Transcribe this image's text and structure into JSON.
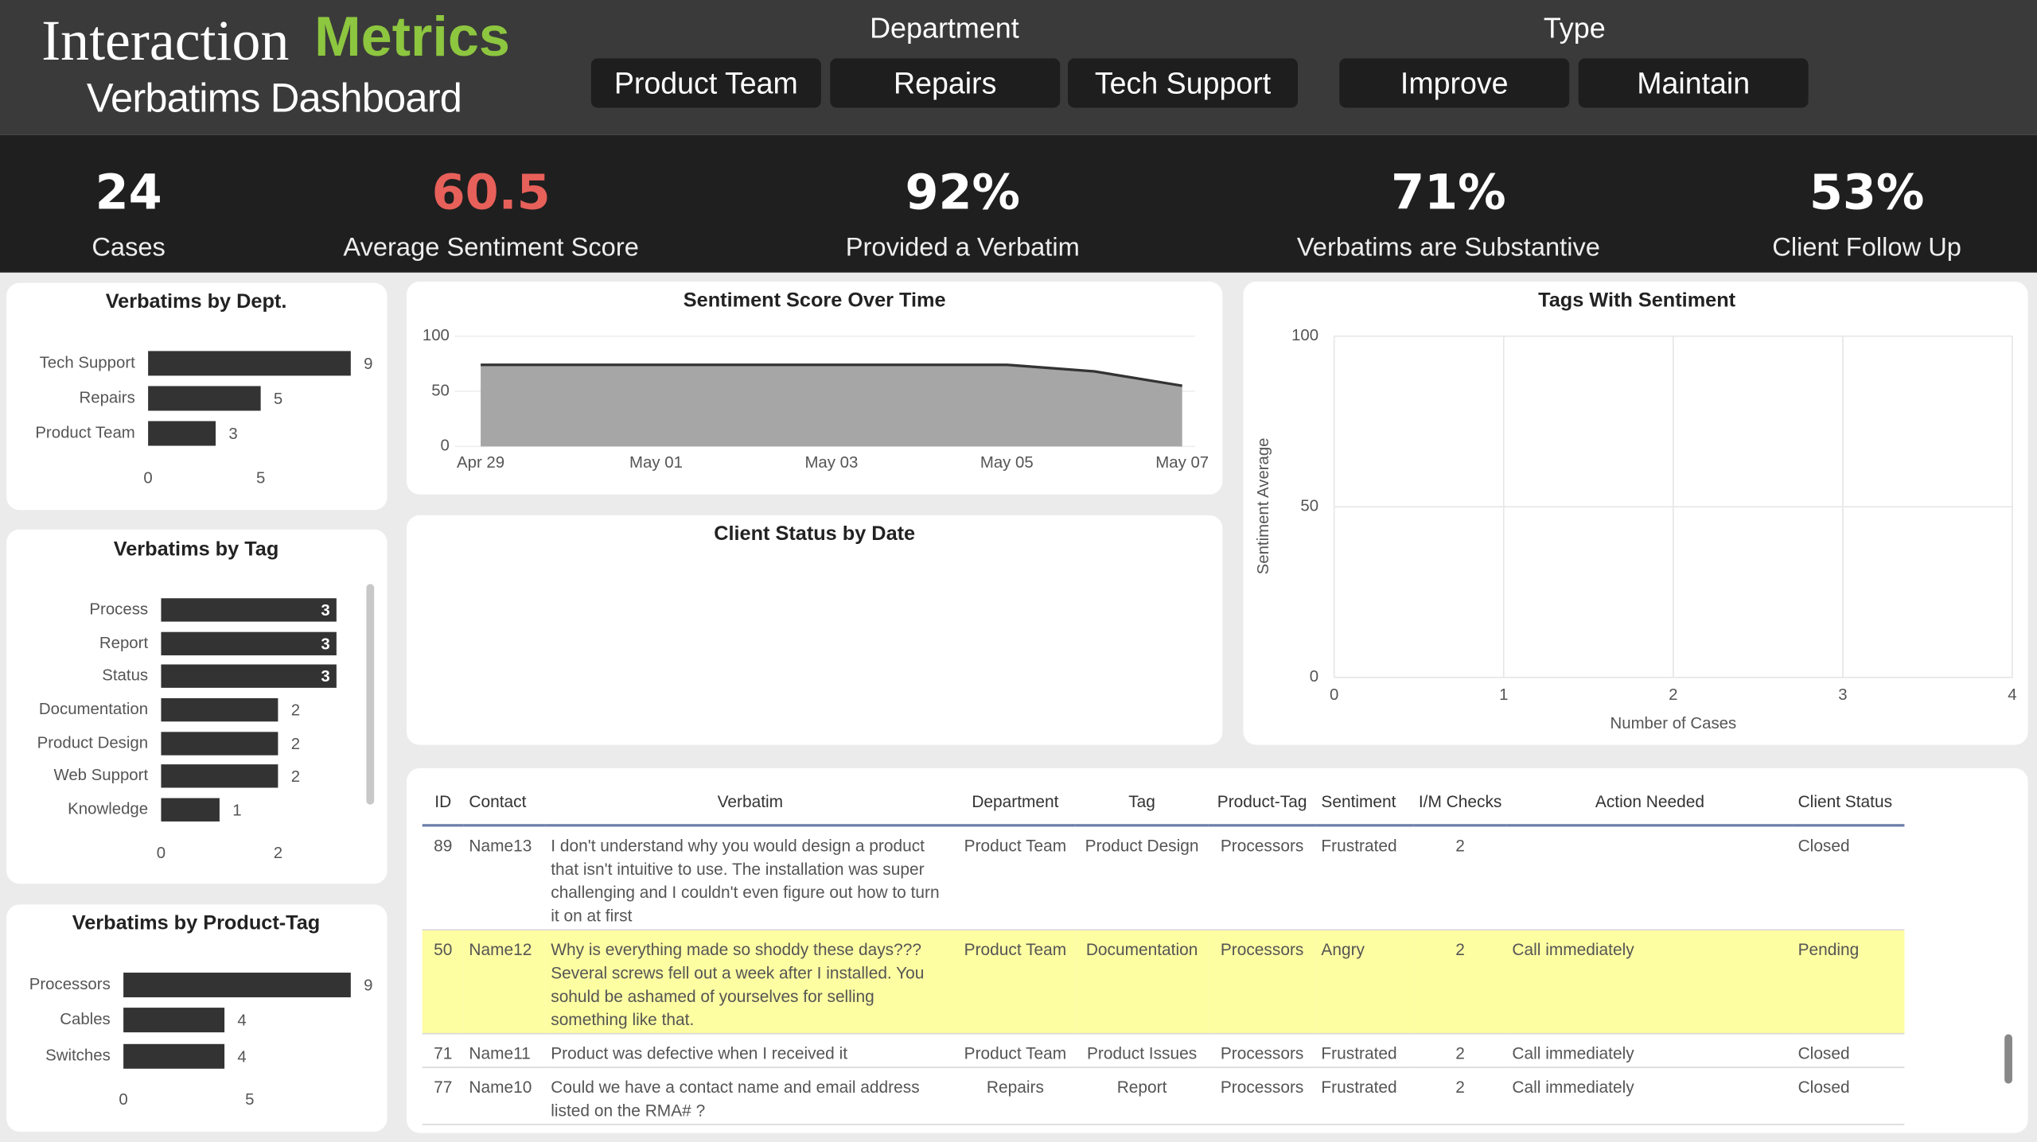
{
  "header": {
    "brand_part1": "Interaction",
    "brand_part2": "Metrics",
    "subtitle": "Verbatims Dashboard",
    "department_label": "Department",
    "department_buttons": [
      "Product Team",
      "Repairs",
      "Tech Support"
    ],
    "type_label": "Type",
    "type_buttons": [
      "Improve",
      "Maintain"
    ]
  },
  "kpis": [
    {
      "value": "24",
      "label": "Cases"
    },
    {
      "value": "60.5",
      "label": "Average Sentiment Score"
    },
    {
      "value": "92%",
      "label": "Provided a Verbatim"
    },
    {
      "value": "71%",
      "label": "Verbatims are Substantive"
    },
    {
      "value": "53%",
      "label": "Client Follow Up"
    }
  ],
  "chart_data": [
    {
      "type": "bar",
      "title": "Verbatims by Dept.",
      "categories": [
        "Tech Support",
        "Repairs",
        "Product Team"
      ],
      "values": [
        9,
        5,
        3
      ],
      "color": "#333333",
      "xlim": [
        0,
        9
      ],
      "xticks": [
        0,
        5
      ]
    },
    {
      "type": "bar",
      "title": "Verbatims by Tag",
      "categories": [
        "Process",
        "Report",
        "Status",
        "Documentation",
        "Product Design",
        "Web Support",
        "Knowledge"
      ],
      "values": [
        3,
        3,
        3,
        2,
        2,
        2,
        1
      ],
      "color": "#333333",
      "xlim": [
        0,
        3
      ],
      "xticks": [
        0,
        2
      ]
    },
    {
      "type": "bar",
      "title": "Verbatims by Product-Tag",
      "categories": [
        "Processors",
        "Cables",
        "Switches"
      ],
      "values": [
        9,
        4,
        4
      ],
      "color": "#333333",
      "xlim": [
        0,
        9
      ],
      "xticks": [
        0,
        5
      ]
    },
    {
      "type": "area",
      "title": "Sentiment Score Over Time",
      "categories": [
        "Apr 29",
        null,
        "May 01",
        null,
        "May 03",
        null,
        "May 05",
        null,
        "May 07"
      ],
      "values": [
        74,
        74,
        74,
        74,
        74,
        74,
        74,
        68,
        55
      ],
      "color": "#a6a6a6",
      "ylim": [
        0,
        100
      ],
      "yticks": [
        0,
        50,
        100
      ],
      "grid": true
    },
    {
      "type": "bar",
      "title": "Client Status by Date"
    },
    {
      "type": "scatter",
      "title": "Tags With Sentiment",
      "x_label": "Number of Cases",
      "y_label": "Sentiment Average",
      "xlim": [
        0,
        4
      ],
      "xticks": [
        0,
        1,
        2,
        3,
        4
      ],
      "ylim": [
        0,
        100
      ],
      "yticks": [
        0,
        50,
        100
      ],
      "grid": true
    }
  ],
  "table": {
    "columns": [
      "ID",
      "Contact",
      "Verbatim",
      "Department",
      "Tag",
      "Product-Tag",
      "Sentiment",
      "I/M Checks",
      "Action Needed",
      "Client Status"
    ],
    "highlighted_row": 1,
    "rows": [
      [
        89,
        "Name13",
        "I don't understand why you would design a product that isn't intuitive to use. The installation was super challenging and I couldn't even figure out how to turn it on at first",
        "Product Team",
        "Product Design",
        "Processors",
        "Frustrated",
        2,
        null,
        "Closed"
      ],
      [
        50,
        "Name12",
        "Why is everything made so shoddy these days??? Several screws fell out a week after I installed. You sohuld be ashamed of yourselves for selling something like that.",
        "Product Team",
        "Documentation",
        "Processors",
        "Angry",
        2,
        "Call immediately",
        "Pending"
      ],
      [
        71,
        "Name11",
        "Product was defective when I received it",
        "Product Team",
        "Product Issues",
        "Processors",
        "Frustrated",
        2,
        "Call immediately",
        "Closed"
      ],
      [
        77,
        "Name10",
        "Could we have a contact name and email address listed on the RMA# ?",
        "Repairs",
        "Report",
        "Processors",
        "Frustrated",
        2,
        "Call immediately",
        "Closed"
      ]
    ]
  }
}
